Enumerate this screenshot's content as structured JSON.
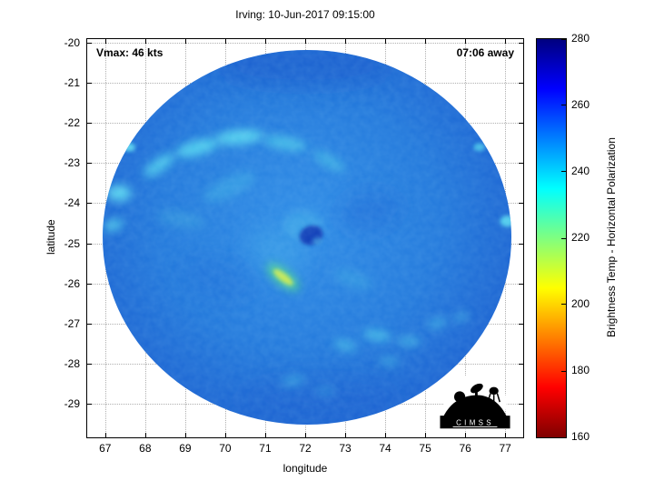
{
  "title": "Irving: 10-Jun-2017 09:15:00",
  "annotations": {
    "vmax": "Vmax: 46 kts",
    "away": "07:06 away"
  },
  "logo": {
    "text": "CIMSS"
  },
  "colorbar": {
    "label": "Brightness Temp - Horizontal Polarization",
    "min": 160,
    "max": 280,
    "ticks": [
      160,
      180,
      200,
      220,
      240,
      260,
      280
    ],
    "stops": [
      {
        "v": 280,
        "c": "#00007f"
      },
      {
        "v": 265,
        "c": "#0000ff"
      },
      {
        "v": 235,
        "c": "#00ffff"
      },
      {
        "v": 205,
        "c": "#ffff00"
      },
      {
        "v": 175,
        "c": "#ff0000"
      },
      {
        "v": 160,
        "c": "#7f0000"
      }
    ]
  },
  "chart_data": {
    "type": "heatmap",
    "title": "Irving: 10-Jun-2017 09:15:00",
    "xlabel": "longitude",
    "ylabel": "latitude",
    "xlim": [
      66.55,
      77.45
    ],
    "ylim": [
      -19.9,
      -29.85
    ],
    "xticks": [
      67,
      68,
      69,
      70,
      71,
      72,
      73,
      74,
      75,
      76,
      77
    ],
    "yticks": [
      -20,
      -21,
      -22,
      -23,
      -24,
      -25,
      -26,
      -27,
      -28,
      -29
    ],
    "grid": "dotted",
    "legend_position": "colorbar-right",
    "storm": {
      "name": "Irving",
      "datetime": "10-Jun-2017 09:15:00",
      "vmax_kts": 46,
      "time_away": "07:06"
    },
    "swath": {
      "center_lon": 72.05,
      "center_lat": -24.85,
      "radius_deg": 5.1,
      "background_temp_K": 257
    },
    "eye": {
      "lon": 72.15,
      "lat": -24.8,
      "temp_K": 272
    },
    "features": [
      {
        "lon": 68.35,
        "lat": -23.05,
        "rx": 0.45,
        "ry": 0.16,
        "rot": -35,
        "c": "#52d2ee",
        "o": 0.85,
        "b": "m"
      },
      {
        "lon": 69.3,
        "lat": -22.62,
        "rx": 0.55,
        "ry": 0.18,
        "rot": -15,
        "c": "#55d5f0",
        "o": 0.9,
        "b": "m"
      },
      {
        "lon": 70.35,
        "lat": -22.35,
        "rx": 0.6,
        "ry": 0.18,
        "rot": -5,
        "c": "#58d7f0",
        "o": 0.9,
        "b": "m"
      },
      {
        "lon": 71.5,
        "lat": -22.5,
        "rx": 0.55,
        "ry": 0.16,
        "rot": 10,
        "c": "#4cc8ea",
        "o": 0.8,
        "b": "m"
      },
      {
        "lon": 72.6,
        "lat": -22.95,
        "rx": 0.45,
        "ry": 0.15,
        "rot": 30,
        "c": "#44bce6",
        "o": 0.7,
        "b": "m"
      },
      {
        "lon": 67.35,
        "lat": -23.75,
        "rx": 0.3,
        "ry": 0.2,
        "rot": 0,
        "c": "#60dcf2",
        "o": 0.9,
        "b": "m"
      },
      {
        "lon": 67.2,
        "lat": -24.55,
        "rx": 0.26,
        "ry": 0.14,
        "rot": -20,
        "c": "#52d0ec",
        "o": 0.8,
        "b": "m"
      },
      {
        "lon": 67.6,
        "lat": -22.6,
        "rx": 0.15,
        "ry": 0.11,
        "rot": 0,
        "c": "#62e0f2",
        "o": 0.85,
        "b": "s"
      },
      {
        "lon": 68.9,
        "lat": -24.4,
        "rx": 0.6,
        "ry": 0.2,
        "rot": 10,
        "c": "#3fa8e0",
        "o": 0.45,
        "b": "m"
      },
      {
        "lon": 71.3,
        "lat": -25.2,
        "rx": 0.75,
        "ry": 0.5,
        "rot": 20,
        "c": "#3fa8e8",
        "o": 0.5,
        "b": "l"
      },
      {
        "lon": 71.95,
        "lat": -24.55,
        "rx": 0.5,
        "ry": 0.35,
        "rot": 0,
        "c": "#46b4e8",
        "o": 0.5,
        "b": "m"
      },
      {
        "lon": 72.15,
        "lat": -24.8,
        "rx": 0.3,
        "ry": 0.24,
        "rot": -20,
        "c": "#0c35b4",
        "o": 0.9,
        "b": "s"
      },
      {
        "lon": 72.3,
        "lat": -24.95,
        "rx": 0.12,
        "ry": 0.09,
        "rot": 0,
        "c": "#3f9fe0",
        "o": 0.7,
        "b": "s"
      },
      {
        "lon": 71.45,
        "lat": -25.85,
        "rx": 0.5,
        "ry": 0.2,
        "rot": 38,
        "c": "#4fd890",
        "o": 0.8,
        "b": "m"
      },
      {
        "lon": 71.45,
        "lat": -25.85,
        "rx": 0.3,
        "ry": 0.1,
        "rot": 38,
        "c": "#cdea52",
        "o": 0.95,
        "b": "s"
      },
      {
        "lon": 73.0,
        "lat": -27.55,
        "rx": 0.3,
        "ry": 0.13,
        "rot": 15,
        "c": "#48c0e8",
        "o": 0.7,
        "b": "m"
      },
      {
        "lon": 73.8,
        "lat": -27.3,
        "rx": 0.35,
        "ry": 0.14,
        "rot": 10,
        "c": "#4cc6ea",
        "o": 0.75,
        "b": "m"
      },
      {
        "lon": 74.6,
        "lat": -27.45,
        "rx": 0.3,
        "ry": 0.12,
        "rot": 0,
        "c": "#46bce6",
        "o": 0.7,
        "b": "m"
      },
      {
        "lon": 75.3,
        "lat": -27.0,
        "rx": 0.25,
        "ry": 0.12,
        "rot": -15,
        "c": "#4abee8",
        "o": 0.65,
        "b": "m"
      },
      {
        "lon": 75.9,
        "lat": -26.85,
        "rx": 0.2,
        "ry": 0.1,
        "rot": -20,
        "c": "#48bce6",
        "o": 0.6,
        "b": "m"
      },
      {
        "lon": 74.1,
        "lat": -27.95,
        "rx": 0.25,
        "ry": 0.11,
        "rot": 5,
        "c": "#44b8e4",
        "o": 0.6,
        "b": "m"
      },
      {
        "lon": 71.7,
        "lat": -28.45,
        "rx": 0.3,
        "ry": 0.14,
        "rot": -10,
        "c": "#4ac2e8",
        "o": 0.6,
        "b": "m"
      },
      {
        "lon": 72.5,
        "lat": -28.7,
        "rx": 0.25,
        "ry": 0.12,
        "rot": 5,
        "c": "#46bce6",
        "o": 0.55,
        "b": "m"
      },
      {
        "lon": 77.05,
        "lat": -24.45,
        "rx": 0.18,
        "ry": 0.14,
        "rot": 0,
        "c": "#5ad8f0",
        "o": 0.9,
        "b": "s"
      },
      {
        "lon": 76.35,
        "lat": -22.6,
        "rx": 0.14,
        "ry": 0.1,
        "rot": 0,
        "c": "#50d0ec",
        "o": 0.8,
        "b": "s"
      },
      {
        "lon": 72.0,
        "lat": -20.6,
        "rx": 2.2,
        "ry": 0.5,
        "rot": 0,
        "c": "#1452c8",
        "o": 0.5,
        "b": "l"
      },
      {
        "lon": 72.3,
        "lat": -28.9,
        "rx": 2.0,
        "ry": 0.5,
        "rot": 0,
        "c": "#1a5ed0",
        "o": 0.4,
        "b": "l"
      },
      {
        "lon": 73.6,
        "lat": -24.2,
        "rx": 0.8,
        "ry": 0.5,
        "rot": -10,
        "c": "#1c66d6",
        "o": 0.45,
        "b": "l"
      },
      {
        "lon": 69.8,
        "lat": -25.9,
        "rx": 0.9,
        "ry": 0.5,
        "rot": 15,
        "c": "#1e6ad8",
        "o": 0.35,
        "b": "l"
      },
      {
        "lon": 70.1,
        "lat": -23.6,
        "rx": 0.7,
        "ry": 0.25,
        "rot": -25,
        "c": "#3fb0e6",
        "o": 0.5,
        "b": "m"
      },
      {
        "lon": 73.2,
        "lat": -25.9,
        "rx": 0.5,
        "ry": 0.2,
        "rot": 20,
        "c": "#3aa6e2",
        "o": 0.5,
        "b": "m"
      }
    ]
  }
}
